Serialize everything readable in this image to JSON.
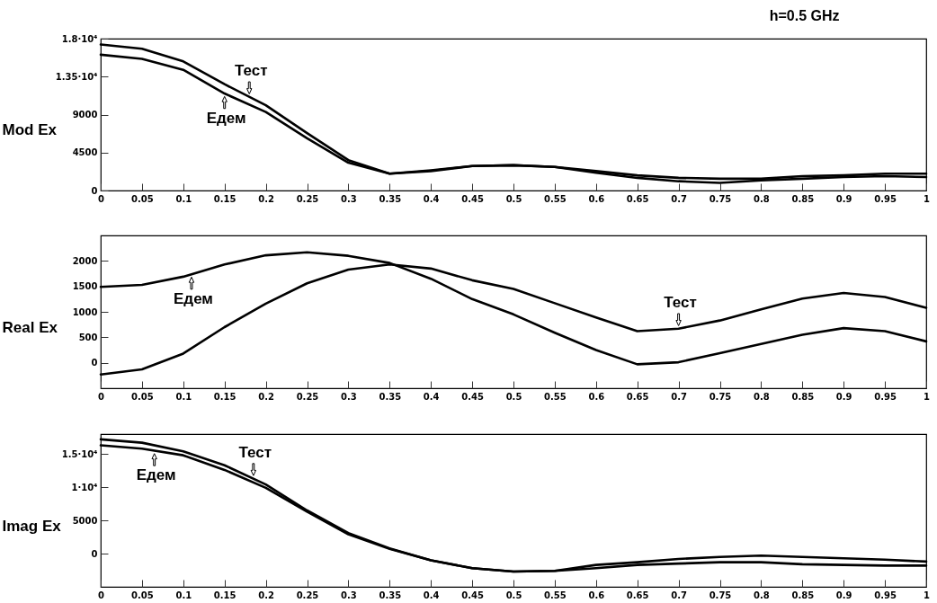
{
  "chart_data": [
    {
      "type": "line",
      "title": "h=0.5 GHz",
      "ylabel": "Mod Ex",
      "xlim": [
        0,
        1
      ],
      "xticks": [
        0,
        0.05,
        0.1,
        0.15,
        0.2,
        0.25,
        0.3,
        0.35,
        0.4,
        0.45,
        0.5,
        0.55,
        0.6,
        0.65,
        0.7,
        0.75,
        0.8,
        0.85,
        0.9,
        0.95,
        1
      ],
      "ylim": [
        0,
        18000
      ],
      "yticks": [
        0,
        4500,
        9000,
        {
          "value": 13500,
          "label": "1.35·10⁴"
        },
        {
          "value": 18000,
          "label": "1.8·10⁴"
        }
      ],
      "grid": false,
      "legend": false,
      "line_style": "solid",
      "marker": "none",
      "x": [
        0,
        0.05,
        0.1,
        0.15,
        0.2,
        0.25,
        0.3,
        0.35,
        0.4,
        0.45,
        0.5,
        0.55,
        0.6,
        0.65,
        0.7,
        0.75,
        0.8,
        0.85,
        0.9,
        0.95,
        1
      ],
      "series": [
        {
          "color": "#000000",
          "values": [
            17300,
            16800,
            15300,
            12600,
            10100,
            6800,
            3600,
            2000,
            2400,
            2900,
            3000,
            2800,
            2300,
            1800,
            1500,
            1400,
            1400,
            1700,
            1800,
            2000,
            2000
          ]
        },
        {
          "color": "#000000",
          "values": [
            16100,
            15600,
            14300,
            11500,
            9300,
            6200,
            3300,
            2000,
            2300,
            2900,
            3000,
            2800,
            2100,
            1500,
            1100,
            900,
            1200,
            1400,
            1600,
            1700,
            1600
          ]
        }
      ],
      "annotations": [
        {
          "text": "Тест",
          "x": 0.18,
          "y": 11100
        },
        {
          "text": "Едем",
          "x": 0.15,
          "y": 11500
        }
      ]
    },
    {
      "type": "line",
      "ylabel": "Real Ex",
      "xlim": [
        0,
        1
      ],
      "xticks": [
        0,
        0.05,
        0.1,
        0.15,
        0.2,
        0.25,
        0.3,
        0.35,
        0.4,
        0.45,
        0.5,
        0.55,
        0.6,
        0.65,
        0.7,
        0.75,
        0.8,
        0.85,
        0.9,
        0.95,
        1
      ],
      "ylim": [
        -500,
        2500
      ],
      "yticks": [
        0,
        500,
        1000,
        1500,
        2000
      ],
      "grid": false,
      "legend": false,
      "line_style": "solid",
      "marker": "none",
      "x": [
        0,
        0.05,
        0.1,
        0.15,
        0.2,
        0.25,
        0.3,
        0.35,
        0.4,
        0.45,
        0.5,
        0.55,
        0.6,
        0.65,
        0.7,
        0.75,
        0.8,
        0.85,
        0.9,
        0.95,
        1
      ],
      "series": [
        {
          "color": "#000000",
          "values": [
            -230,
            -130,
            180,
            700,
            1160,
            1560,
            1830,
            1930,
            1850,
            1620,
            1450,
            1170,
            890,
            620,
            670,
            830,
            1050,
            1260,
            1370,
            1290,
            1080
          ]
        },
        {
          "color": "#000000",
          "values": [
            1490,
            1530,
            1690,
            1930,
            2110,
            2170,
            2100,
            1960,
            1650,
            1250,
            950,
            590,
            250,
            -30,
            10,
            190,
            370,
            550,
            680,
            620,
            420
          ]
        }
      ],
      "annotations": [
        {
          "text": "Едем",
          "x": 0.11,
          "y": 1740
        },
        {
          "text": "Тест",
          "x": 0.7,
          "y": 670
        }
      ]
    },
    {
      "type": "line",
      "ylabel": "Imag Ex",
      "xlim": [
        0,
        1
      ],
      "xticks": [
        0,
        0.05,
        0.1,
        0.15,
        0.2,
        0.25,
        0.3,
        0.35,
        0.4,
        0.45,
        0.5,
        0.55,
        0.6,
        0.65,
        0.7,
        0.75,
        0.8,
        0.85,
        0.9,
        0.95,
        1
      ],
      "ylim": [
        -5000,
        18000
      ],
      "yticks": [
        0,
        5000,
        {
          "value": 10000,
          "label": "1·10⁴"
        },
        {
          "value": 15000,
          "label": "1.5·10⁴"
        }
      ],
      "grid": false,
      "legend": false,
      "line_style": "solid",
      "marker": "none",
      "x": [
        0,
        0.05,
        0.1,
        0.15,
        0.2,
        0.25,
        0.3,
        0.35,
        0.4,
        0.45,
        0.5,
        0.55,
        0.6,
        0.65,
        0.7,
        0.75,
        0.8,
        0.85,
        0.9,
        0.95,
        1
      ],
      "series": [
        {
          "color": "#000000",
          "values": [
            17200,
            16700,
            15400,
            13300,
            10400,
            6500,
            3100,
            800,
            -1000,
            -2200,
            -2700,
            -2600,
            -1700,
            -1300,
            -800,
            -500,
            -300,
            -500,
            -700,
            -900,
            -1200
          ]
        },
        {
          "color": "#000000",
          "values": [
            16300,
            15800,
            14800,
            12600,
            9900,
            6300,
            2900,
            700,
            -1000,
            -2200,
            -2700,
            -2600,
            -2200,
            -1700,
            -1500,
            -1300,
            -1300,
            -1600,
            -1700,
            -1800,
            -1800
          ]
        }
      ],
      "annotations": [
        {
          "text": "Едем",
          "x": 0.065,
          "y": 15500
        },
        {
          "text": "Тест",
          "x": 0.185,
          "y": 11300
        }
      ]
    }
  ]
}
